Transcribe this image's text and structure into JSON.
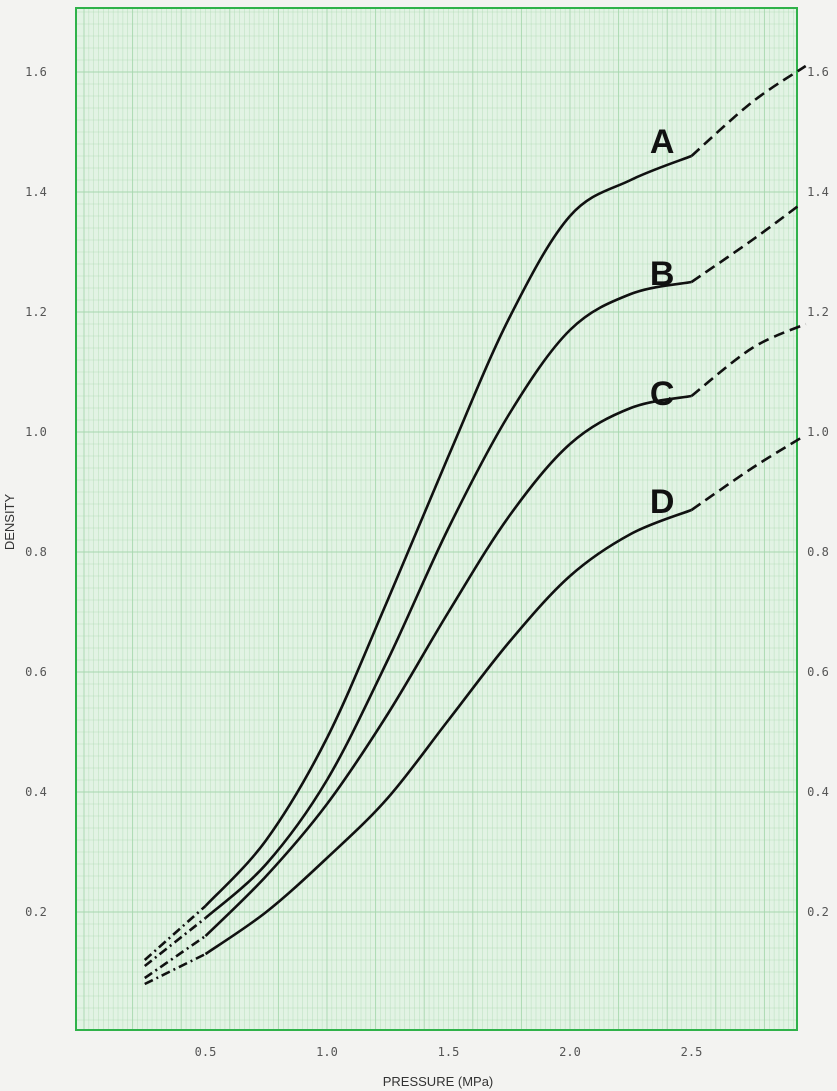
{
  "chart_data": {
    "type": "line",
    "xlabel": "PRESSURE (MPa)",
    "ylabel": "DENSITY",
    "xlim": [
      0,
      3.0
    ],
    "ylim": [
      0,
      1.7
    ],
    "x_ticks": [
      {
        "value": 0.5,
        "label": "0.5"
      },
      {
        "value": 1.0,
        "label": "1.0"
      },
      {
        "value": 1.5,
        "label": "1.5"
      },
      {
        "value": 2.0,
        "label": "2.0"
      },
      {
        "value": 2.5,
        "label": "2.5"
      }
    ],
    "y_ticks": [
      {
        "value": 0.2,
        "label": "0.2"
      },
      {
        "value": 0.4,
        "label": "0.4"
      },
      {
        "value": 0.6,
        "label": "0.6"
      },
      {
        "value": 0.8,
        "label": "0.8"
      },
      {
        "value": 1.0,
        "label": "1.0"
      },
      {
        "value": 1.2,
        "label": "1.2"
      },
      {
        "value": 1.4,
        "label": "1.4"
      },
      {
        "value": 1.6,
        "label": "1.6"
      }
    ],
    "grid": true,
    "background_color": "#e2f3e4",
    "grid_color": "#a7d7ae",
    "frame_color": "#2fb24a",
    "series": [
      {
        "name": "A",
        "label_at": {
          "x": 2.43,
          "y": 1.465
        },
        "extrap_start": [
          [
            0.25,
            0.12
          ],
          [
            0.5,
            0.21
          ]
        ],
        "solid": [
          [
            0.5,
            0.21
          ],
          [
            0.75,
            0.32
          ],
          [
            1.0,
            0.49
          ],
          [
            1.25,
            0.72
          ],
          [
            1.5,
            0.96
          ],
          [
            1.75,
            1.19
          ],
          [
            2.0,
            1.36
          ],
          [
            2.25,
            1.42
          ],
          [
            2.5,
            1.46
          ]
        ],
        "extrap_end": [
          [
            2.5,
            1.46
          ],
          [
            2.75,
            1.55
          ],
          [
            2.97,
            1.61
          ]
        ]
      },
      {
        "name": "B",
        "label_at": {
          "x": 2.43,
          "y": 1.245
        },
        "extrap_start": [
          [
            0.25,
            0.11
          ],
          [
            0.5,
            0.19
          ]
        ],
        "solid": [
          [
            0.5,
            0.19
          ],
          [
            0.75,
            0.28
          ],
          [
            1.0,
            0.42
          ],
          [
            1.25,
            0.62
          ],
          [
            1.5,
            0.84
          ],
          [
            1.75,
            1.03
          ],
          [
            2.0,
            1.17
          ],
          [
            2.25,
            1.23
          ],
          [
            2.5,
            1.25
          ]
        ],
        "extrap_end": [
          [
            2.5,
            1.25
          ],
          [
            2.75,
            1.32
          ],
          [
            2.95,
            1.38
          ]
        ]
      },
      {
        "name": "C",
        "label_at": {
          "x": 2.43,
          "y": 1.045
        },
        "extrap_start": [
          [
            0.25,
            0.09
          ],
          [
            0.5,
            0.16
          ]
        ],
        "solid": [
          [
            0.5,
            0.16
          ],
          [
            0.75,
            0.26
          ],
          [
            1.0,
            0.38
          ],
          [
            1.25,
            0.53
          ],
          [
            1.5,
            0.7
          ],
          [
            1.75,
            0.86
          ],
          [
            2.0,
            0.98
          ],
          [
            2.25,
            1.04
          ],
          [
            2.5,
            1.06
          ]
        ],
        "extrap_end": [
          [
            2.5,
            1.06
          ],
          [
            2.75,
            1.14
          ],
          [
            2.97,
            1.18
          ]
        ]
      },
      {
        "name": "D",
        "label_at": {
          "x": 2.43,
          "y": 0.865
        },
        "extrap_start": [
          [
            0.25,
            0.08
          ],
          [
            0.5,
            0.13
          ]
        ],
        "solid": [
          [
            0.5,
            0.13
          ],
          [
            0.75,
            0.2
          ],
          [
            1.0,
            0.29
          ],
          [
            1.25,
            0.39
          ],
          [
            1.5,
            0.52
          ],
          [
            1.75,
            0.65
          ],
          [
            2.0,
            0.76
          ],
          [
            2.25,
            0.83
          ],
          [
            2.5,
            0.87
          ]
        ],
        "extrap_end": [
          [
            2.5,
            0.87
          ],
          [
            2.75,
            0.94
          ],
          [
            2.95,
            0.99
          ]
        ]
      }
    ]
  }
}
